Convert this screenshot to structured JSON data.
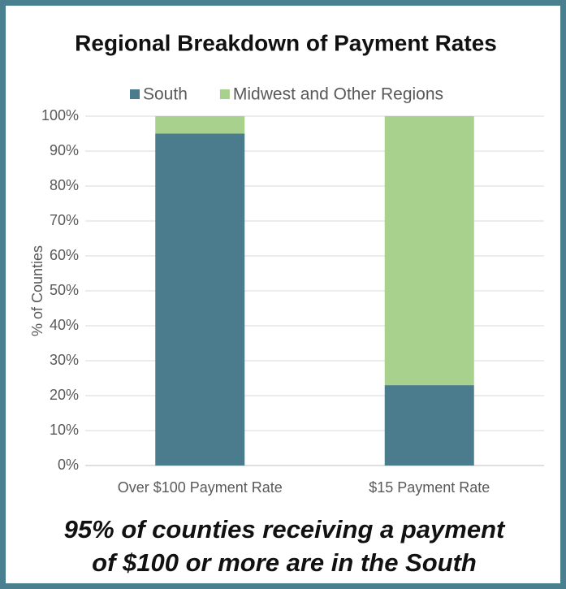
{
  "chart_data": {
    "type": "stacked_bar",
    "title": "Regional Breakdown of Payment Rates",
    "ylabel": "% of Counties",
    "categories": [
      "Over $100 Payment Rate",
      "$15 Payment Rate"
    ],
    "series": [
      {
        "name": "South",
        "color": "#4a7c8e",
        "values": [
          95,
          23
        ]
      },
      {
        "name": "Midwest and Other Regions",
        "color": "#a9d18e",
        "values": [
          5,
          77
        ]
      }
    ],
    "ylim": [
      0,
      100
    ],
    "yticks": [
      {
        "value": 0,
        "label": "0%"
      },
      {
        "value": 10,
        "label": "10%"
      },
      {
        "value": 20,
        "label": "20%"
      },
      {
        "value": 30,
        "label": "30%"
      },
      {
        "value": 40,
        "label": "40%"
      },
      {
        "value": 50,
        "label": "50%"
      },
      {
        "value": 60,
        "label": "60%"
      },
      {
        "value": 70,
        "label": "70%"
      },
      {
        "value": 80,
        "label": "80%"
      },
      {
        "value": 90,
        "label": "90%"
      },
      {
        "value": 100,
        "label": "100%"
      }
    ],
    "grid": true,
    "legend": "top",
    "annotations": [
      "95% of counties receiving a payment",
      "of $100 or more are in the South"
    ]
  }
}
